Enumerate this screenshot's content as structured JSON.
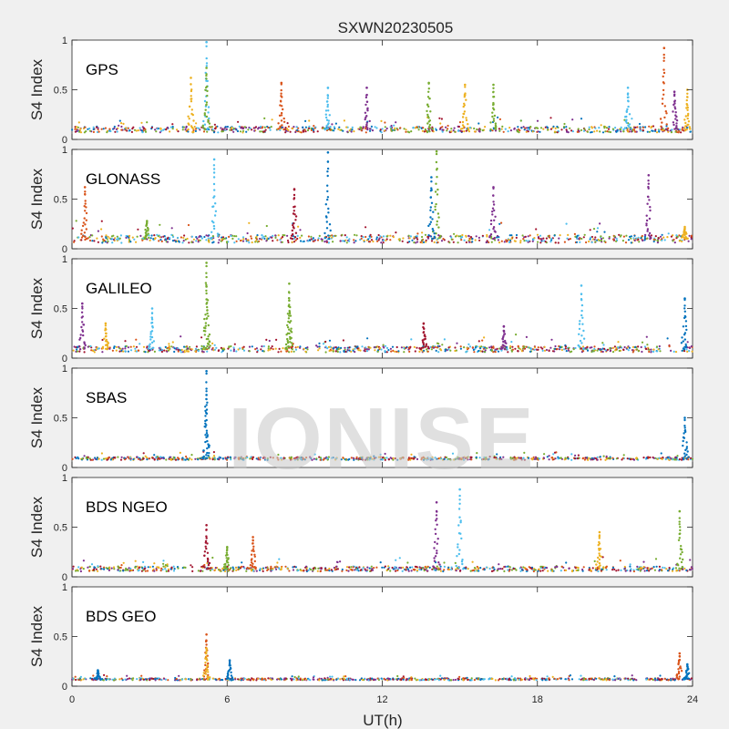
{
  "figure": {
    "title": "SXWN20230505",
    "xlabel": "UT(h)",
    "watermark": "IONISE"
  },
  "chart_data": {
    "type": "scatter",
    "title": "SXWN20230505",
    "xlabel": "UT(h)",
    "ylabel": "S4 Index",
    "xlim": [
      0,
      24
    ],
    "ylim": [
      0,
      1
    ],
    "xticks": [
      0,
      6,
      12,
      18,
      24
    ],
    "yticks": [
      0,
      0.5,
      1
    ],
    "grid": false,
    "colors": [
      "#0072bd",
      "#d95319",
      "#edb120",
      "#7e2f8e",
      "#77ac30",
      "#4dbeee",
      "#a2142f"
    ],
    "panels": [
      {
        "name": "GPS",
        "baseline": 0.1,
        "noise": 0.03,
        "spikes": [
          {
            "x": 4.6,
            "y": 0.62,
            "c": 2
          },
          {
            "x": 5.2,
            "y": 0.98,
            "c": 5
          },
          {
            "x": 5.2,
            "y": 0.72,
            "c": 4
          },
          {
            "x": 8.1,
            "y": 0.57,
            "c": 1
          },
          {
            "x": 9.9,
            "y": 0.52,
            "c": 5
          },
          {
            "x": 11.4,
            "y": 0.52,
            "c": 3
          },
          {
            "x": 13.8,
            "y": 0.57,
            "c": 4
          },
          {
            "x": 15.2,
            "y": 0.55,
            "c": 2
          },
          {
            "x": 16.3,
            "y": 0.55,
            "c": 4
          },
          {
            "x": 21.5,
            "y": 0.52,
            "c": 5
          },
          {
            "x": 22.9,
            "y": 0.92,
            "c": 1
          },
          {
            "x": 23.3,
            "y": 0.48,
            "c": 3
          },
          {
            "x": 23.8,
            "y": 0.5,
            "c": 2
          }
        ]
      },
      {
        "name": "GLONASS",
        "baseline": 0.1,
        "noise": 0.04,
        "spikes": [
          {
            "x": 0.5,
            "y": 0.62,
            "c": 1
          },
          {
            "x": 2.9,
            "y": 0.28,
            "c": 4
          },
          {
            "x": 5.5,
            "y": 0.9,
            "c": 5
          },
          {
            "x": 8.6,
            "y": 0.6,
            "c": 6
          },
          {
            "x": 9.9,
            "y": 0.97,
            "c": 0
          },
          {
            "x": 14.1,
            "y": 0.98,
            "c": 4
          },
          {
            "x": 13.9,
            "y": 0.72,
            "c": 0
          },
          {
            "x": 16.3,
            "y": 0.62,
            "c": 3
          },
          {
            "x": 22.3,
            "y": 0.74,
            "c": 3
          },
          {
            "x": 23.7,
            "y": 0.22,
            "c": 2
          }
        ]
      },
      {
        "name": "GALILEO",
        "baseline": 0.09,
        "noise": 0.03,
        "spikes": [
          {
            "x": 0.4,
            "y": 0.55,
            "c": 3
          },
          {
            "x": 1.3,
            "y": 0.35,
            "c": 2
          },
          {
            "x": 3.1,
            "y": 0.5,
            "c": 5
          },
          {
            "x": 5.2,
            "y": 0.96,
            "c": 4
          },
          {
            "x": 5.2,
            "y": 0.72,
            "c": 4
          },
          {
            "x": 8.4,
            "y": 0.75,
            "c": 4
          },
          {
            "x": 8.4,
            "y": 0.58,
            "c": 4
          },
          {
            "x": 13.6,
            "y": 0.35,
            "c": 6
          },
          {
            "x": 16.7,
            "y": 0.32,
            "c": 3
          },
          {
            "x": 19.7,
            "y": 0.73,
            "c": 5
          },
          {
            "x": 23.7,
            "y": 0.6,
            "c": 0
          }
        ]
      },
      {
        "name": "SBAS",
        "baseline": 0.09,
        "noise": 0.015,
        "spikes": [
          {
            "x": 5.2,
            "y": 0.97,
            "c": 0
          },
          {
            "x": 5.2,
            "y": 0.73,
            "c": 0
          },
          {
            "x": 23.7,
            "y": 0.5,
            "c": 0
          }
        ]
      },
      {
        "name": "BDS NGEO",
        "baseline": 0.08,
        "noise": 0.025,
        "spikes": [
          {
            "x": 5.2,
            "y": 0.52,
            "c": 6
          },
          {
            "x": 6.0,
            "y": 0.3,
            "c": 4
          },
          {
            "x": 7.0,
            "y": 0.4,
            "c": 1
          },
          {
            "x": 14.1,
            "y": 0.75,
            "c": 3
          },
          {
            "x": 15.0,
            "y": 0.88,
            "c": 5
          },
          {
            "x": 20.4,
            "y": 0.45,
            "c": 2
          },
          {
            "x": 23.5,
            "y": 0.66,
            "c": 4
          }
        ]
      },
      {
        "name": "BDS GEO",
        "baseline": 0.07,
        "noise": 0.01,
        "spikes": [
          {
            "x": 1.0,
            "y": 0.16,
            "c": 0
          },
          {
            "x": 5.2,
            "y": 0.52,
            "c": 1
          },
          {
            "x": 5.2,
            "y": 0.38,
            "c": 2
          },
          {
            "x": 6.1,
            "y": 0.26,
            "c": 0
          },
          {
            "x": 23.5,
            "y": 0.33,
            "c": 1
          },
          {
            "x": 23.8,
            "y": 0.22,
            "c": 0
          }
        ]
      }
    ]
  }
}
